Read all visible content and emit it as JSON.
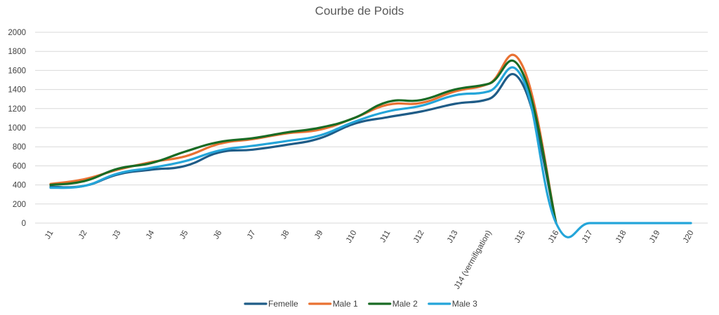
{
  "chart_data": {
    "type": "line",
    "title": "Courbe de Poids",
    "xlabel": "",
    "ylabel": "",
    "categories": [
      "J1",
      "J2",
      "J3",
      "J4",
      "J5",
      "J6",
      "J7",
      "J8",
      "J9",
      "J10",
      "J11",
      "J12",
      "J13",
      "J14 (vermifigation)",
      "J15",
      "J16",
      "J17",
      "J18",
      "J19",
      "J20"
    ],
    "ylim": [
      0,
      2000
    ],
    "yticks": [
      0,
      200,
      400,
      600,
      800,
      1000,
      1200,
      1400,
      1600,
      1800,
      2000
    ],
    "grid": true,
    "legend_position": "bottom",
    "series": [
      {
        "name": "Femelle",
        "color": "#1f5c87",
        "values": [
          380,
          390,
          510,
          560,
          600,
          740,
          770,
          820,
          890,
          1040,
          1110,
          1170,
          1250,
          1300,
          1460,
          0,
          null,
          null,
          null,
          null
        ]
      },
      {
        "name": "Male 1",
        "color": "#e97132",
        "values": [
          410,
          460,
          560,
          640,
          700,
          830,
          880,
          940,
          980,
          1100,
          1240,
          1260,
          1380,
          1460,
          1650,
          0,
          null,
          null,
          null,
          null
        ]
      },
      {
        "name": "Male 2",
        "color": "#196b24",
        "values": [
          400,
          440,
          570,
          630,
          750,
          850,
          890,
          950,
          1000,
          1100,
          1270,
          1290,
          1400,
          1460,
          1580,
          0,
          null,
          null,
          null,
          null
        ]
      },
      {
        "name": "Male 3",
        "color": "#24a5d9",
        "values": [
          370,
          390,
          520,
          580,
          650,
          760,
          810,
          860,
          920,
          1060,
          1170,
          1230,
          1340,
          1380,
          1520,
          0,
          0,
          0,
          0,
          0
        ]
      }
    ]
  }
}
